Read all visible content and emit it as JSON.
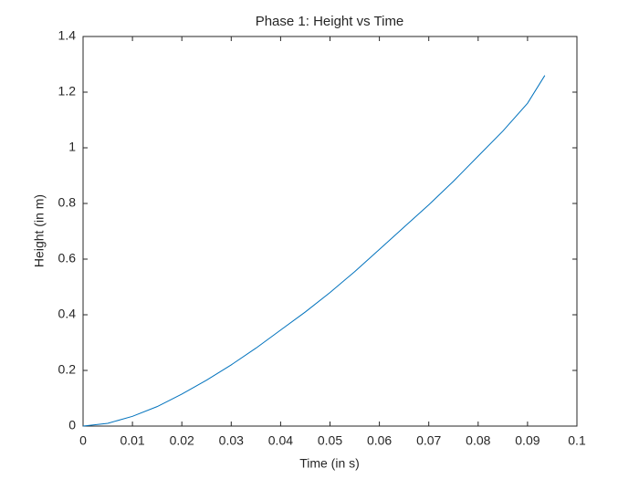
{
  "chart_data": {
    "type": "line",
    "title": "Phase 1: Height vs Time",
    "x_label": "Time (in s)",
    "y_label": "Height (in m)",
    "x": [
      0,
      0.005,
      0.01,
      0.015,
      0.02,
      0.025,
      0.03,
      0.035,
      0.04,
      0.045,
      0.05,
      0.055,
      0.06,
      0.065,
      0.07,
      0.075,
      0.08,
      0.085,
      0.09,
      0.0935
    ],
    "series": [
      {
        "color": "#0072bd",
        "values": [
          0,
          0.01,
          0.035,
          0.07,
          0.115,
          0.165,
          0.22,
          0.28,
          0.345,
          0.41,
          0.48,
          0.555,
          0.635,
          0.715,
          0.795,
          0.88,
          0.97,
          1.06,
          1.16,
          1.26
        ]
      }
    ],
    "xlim": [
      0,
      0.1
    ],
    "ylim": [
      0,
      1.4
    ],
    "xticks": [
      0,
      0.01,
      0.02,
      0.03,
      0.04,
      0.05,
      0.06,
      0.07,
      0.08,
      0.09,
      0.1
    ],
    "yticks": [
      0,
      0.2,
      0.4,
      0.6,
      0.8,
      1,
      1.2,
      1.4
    ],
    "grid": false
  }
}
